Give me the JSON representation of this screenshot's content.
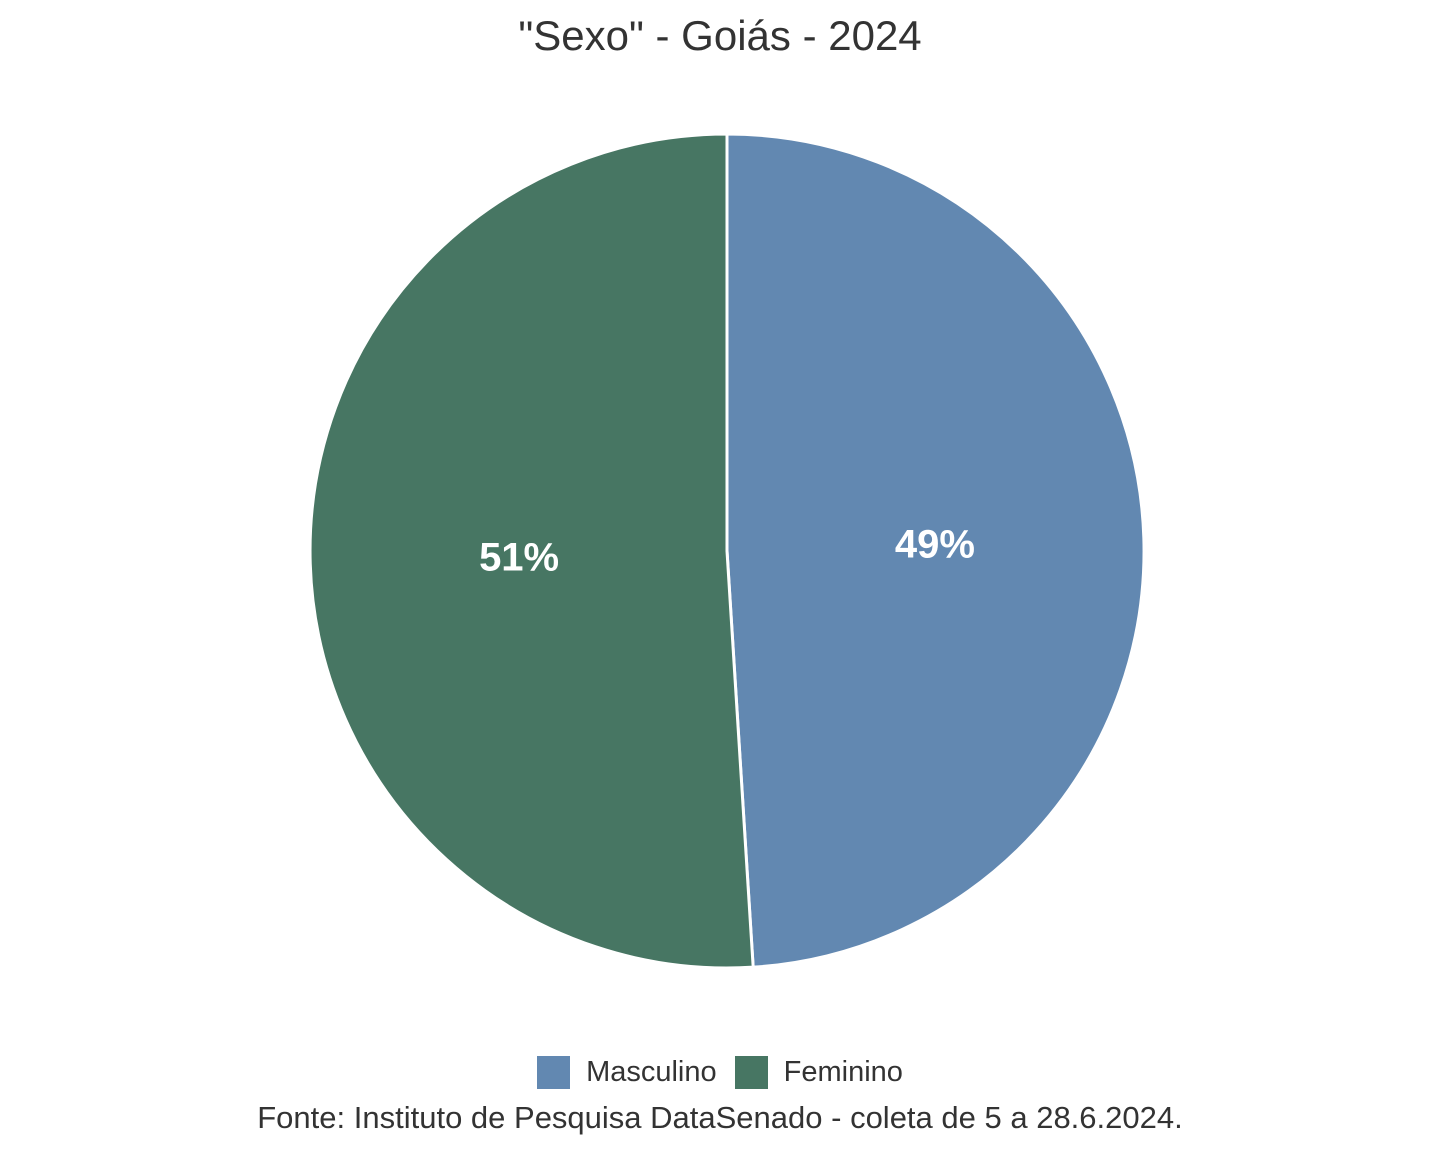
{
  "title": "\"Sexo\" - Goiás - 2024",
  "source": "Fonte: Instituto de Pesquisa DataSenado - coleta de 5 a 28.6.2024.",
  "legend": {
    "items": [
      {
        "label": "Masculino",
        "color": "#6288b1"
      },
      {
        "label": "Feminino",
        "color": "#477663"
      }
    ]
  },
  "chart_data": {
    "type": "pie",
    "title": "\"Sexo\" - Goiás - 2024",
    "categories": [
      "Masculino",
      "Feminino"
    ],
    "values": [
      49,
      51
    ],
    "slices": [
      {
        "label": "Masculino",
        "value": 49,
        "display": "49%",
        "color": "#6288b1"
      },
      {
        "label": "Feminino",
        "value": 51,
        "display": "51%",
        "color": "#477663"
      }
    ],
    "start_angle_deg": 0,
    "direction": "clockwise",
    "slice_label_color": "#ffffff",
    "slice_stroke_color": "#ffffff",
    "legend_position": "bottom",
    "source": "Fonte: Instituto de Pesquisa DataSenado - coleta de 5 a 28.6.2024."
  }
}
